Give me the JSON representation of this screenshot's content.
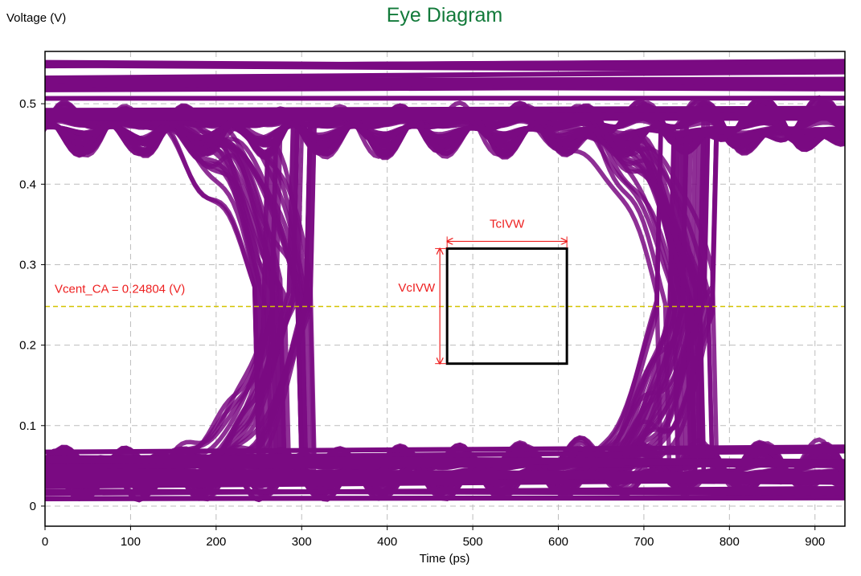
{
  "chart_data": {
    "type": "line",
    "title": "Eye Diagram",
    "xlabel": "Time (ps)",
    "ylabel": "Voltage (V)",
    "xlim": [
      0,
      935
    ],
    "ylim": [
      -0.025,
      0.565
    ],
    "xticks": [
      0,
      100,
      200,
      300,
      400,
      500,
      600,
      700,
      800,
      900
    ],
    "yticks": [
      0,
      0.1,
      0.2,
      0.3,
      0.4,
      0.5
    ],
    "ytick_labels": [
      "0",
      "0.1",
      "0.2",
      "0.3",
      "0.4",
      "0.5"
    ],
    "grid": true,
    "unit_interval_ps": 470,
    "crossing_times_ps": [
      280,
      750
    ],
    "eye_high_v": 0.47,
    "eye_low_v": 0.045,
    "trace_color": "#7a0a82",
    "vcent": {
      "label": "Vcent_CA = 0.24804 (V)",
      "value": 0.24804,
      "color": "#d4c400",
      "label_color": "#ee2020"
    },
    "mask": {
      "t_start": 470,
      "t_end": 610,
      "v_low": 0.177,
      "v_high": 0.32,
      "width_label": "TcIVW",
      "height_label": "VcIVW",
      "box_color": "#000000",
      "arrow_color": "#ee2020"
    }
  }
}
